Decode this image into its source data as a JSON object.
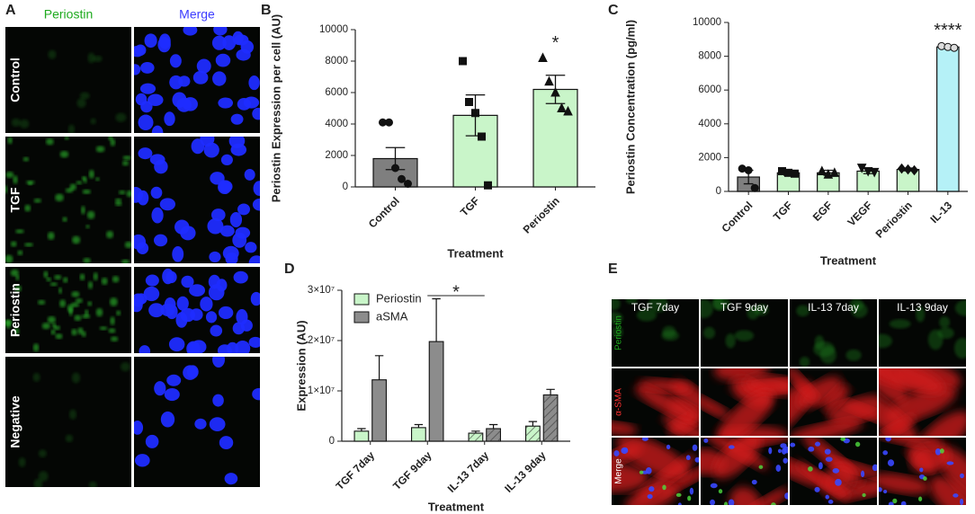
{
  "panel_letters": [
    "A",
    "B",
    "C",
    "D",
    "E"
  ],
  "panel_a": {
    "columns": [
      "Periostin",
      "Merge"
    ],
    "rows": [
      "Control",
      "TGF",
      "Periostin",
      "Negative"
    ]
  },
  "panel_e": {
    "columns": [
      "TGF 7day",
      "TGF 9day",
      "IL-13 7day",
      "IL-13 9day"
    ],
    "rows": [
      "Periostin",
      "α-SMA",
      "Merge"
    ]
  },
  "chart_data": [
    {
      "type": "bar",
      "ylabel": "Periostin Expression per cell (AU)",
      "xlabel": "Treatment",
      "categories": [
        "Control",
        "TGF",
        "Periostin"
      ],
      "values": [
        1800,
        4550,
        6200
      ],
      "errors": [
        700,
        1300,
        900
      ],
      "points": [
        [
          4100,
          4100,
          1200,
          500,
          200
        ],
        [
          8000,
          5400,
          4700,
          3200,
          100
        ],
        [
          8200,
          6700,
          6000,
          5000,
          4800
        ]
      ],
      "markers": [
        "circle",
        "square",
        "triangle"
      ],
      "colors": [
        "#7f7f7f",
        "#c9f5c9",
        "#c9f5c9"
      ],
      "annotation": "*",
      "ylim": [
        0,
        10000
      ],
      "yticks": [
        0,
        2000,
        4000,
        6000,
        8000,
        10000
      ]
    },
    {
      "type": "bar",
      "ylabel": "Periostin Concentration (pg/ml)",
      "xlabel": "Treatment",
      "categories": [
        "Control",
        "TGF",
        "EGF",
        "VEGF",
        "Periostin",
        "IL-13"
      ],
      "values": [
        850,
        1100,
        1100,
        1200,
        1300,
        8550
      ],
      "errors": [
        400,
        150,
        150,
        150,
        80,
        80
      ],
      "points": [
        [
          1350,
          1250,
          200
        ],
        [
          1200,
          1100,
          1050
        ],
        [
          1200,
          1000,
          1100
        ],
        [
          1400,
          1200,
          1150
        ],
        [
          1350,
          1300,
          1250
        ],
        [
          8600,
          8550,
          8500
        ]
      ],
      "markers": [
        "circle",
        "square",
        "triangle",
        "triangle-down",
        "diamond",
        "open-circle"
      ],
      "colors": [
        "#7f7f7f",
        "#c9f5c9",
        "#c9f5c9",
        "#c9f5c9",
        "#c9f5c9",
        "#b5f1f7"
      ],
      "annotation": "****",
      "ylim": [
        0,
        10000
      ],
      "yticks": [
        0,
        2000,
        4000,
        6000,
        8000,
        10000
      ]
    },
    {
      "type": "bar",
      "ylabel": "Expression (AU)",
      "xlabel": "Treatment",
      "categories": [
        "TGF 7day",
        "TGF 9day",
        "IL-13 7day",
        "IL-13 9day"
      ],
      "series": [
        {
          "name": "Periostin",
          "color": "#c9f5c9",
          "values": [
            2000000,
            2700000,
            1600000,
            3000000
          ],
          "errors": [
            500000,
            600000,
            400000,
            900000
          ]
        },
        {
          "name": "aSMA",
          "color": "#8c8c8c",
          "values": [
            12200000,
            19800000,
            2500000,
            9200000
          ],
          "errors": [
            4800000,
            8500000,
            800000,
            1100000
          ]
        }
      ],
      "hatched": [
        false,
        false,
        true,
        true
      ],
      "annotation": "*",
      "legend": "upper-left",
      "ylim": [
        0,
        30000000
      ],
      "yticks": [
        0,
        {
          "value": 10000000,
          "label": "1×10⁷"
        },
        {
          "value": 20000000,
          "label": "2×10⁷"
        },
        {
          "value": 30000000,
          "label": "3×10⁷"
        }
      ]
    }
  ]
}
